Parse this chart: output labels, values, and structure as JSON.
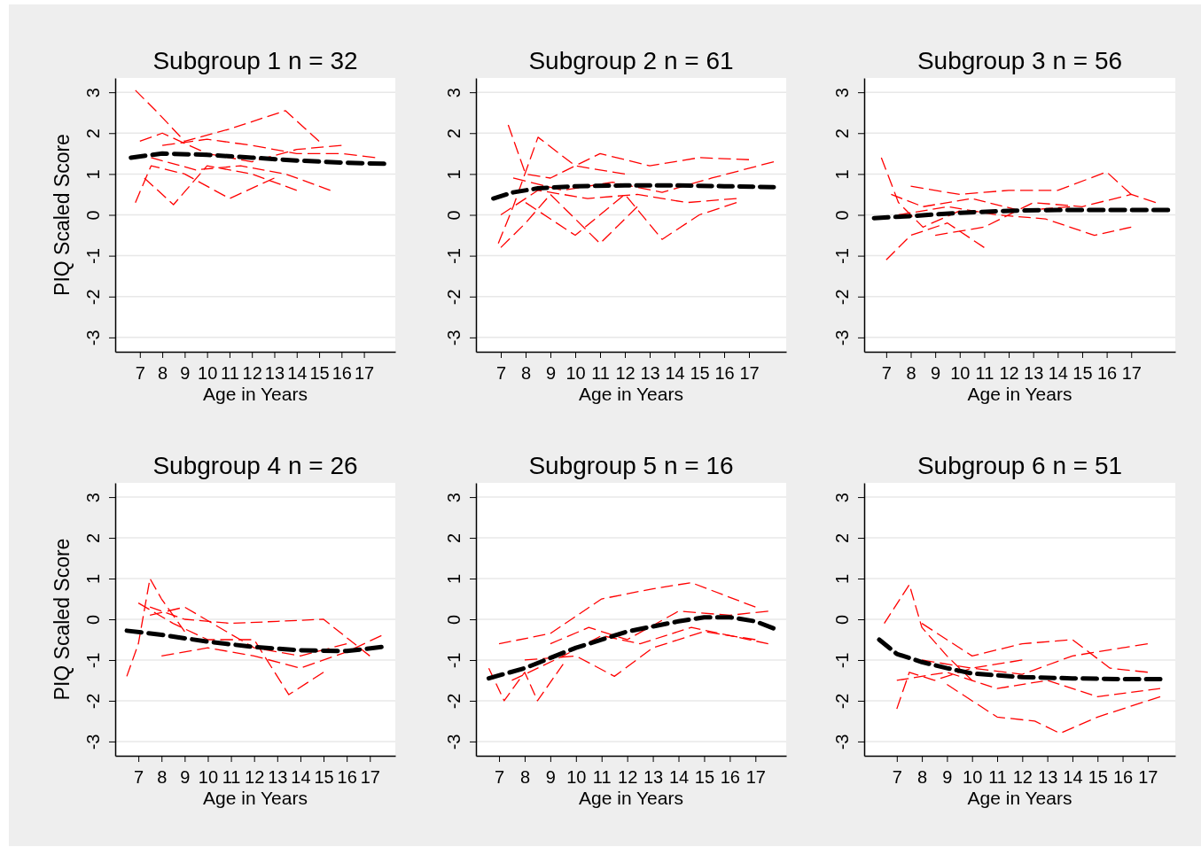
{
  "chart_data": [
    {
      "type": "line",
      "title": "Subgroup 1 n = 32",
      "xlabel": "Age in Years",
      "ylabel": "PIQ Scaled Score",
      "xlim": [
        5.9,
        18.4
      ],
      "ylim": [
        -3.35,
        3.35
      ],
      "xticks": [
        7,
        8,
        9,
        10,
        11,
        12,
        13,
        14,
        15,
        16,
        17
      ],
      "yticks": [
        -3,
        -2,
        -1,
        0,
        1,
        2,
        3
      ],
      "grid": "y",
      "line_style": "dashed",
      "series": [
        {
          "color": "#ff0000",
          "x": [
            6.8,
            7.8,
            9,
            11,
            13.5,
            15
          ],
          "values": [
            3.05,
            2.5,
            1.8,
            2.1,
            2.55,
            1.8
          ]
        },
        {
          "color": "#ff0000",
          "x": [
            6.8,
            7.5,
            9,
            11,
            13
          ],
          "values": [
            0.3,
            1.2,
            1.0,
            0.4,
            0.9
          ]
        },
        {
          "color": "#ff0000",
          "x": [
            7,
            8,
            10,
            12,
            14,
            16
          ],
          "values": [
            1.8,
            2.0,
            1.5,
            1.3,
            1.6,
            1.7
          ]
        },
        {
          "color": "#ff0000",
          "x": [
            7.2,
            8.5,
            10,
            12,
            14
          ],
          "values": [
            0.9,
            0.25,
            1.2,
            1.0,
            0.6
          ]
        },
        {
          "color": "#ff0000",
          "x": [
            8,
            10,
            12,
            14,
            16,
            17.5
          ],
          "values": [
            1.7,
            1.85,
            1.7,
            1.5,
            1.5,
            1.4
          ]
        },
        {
          "color": "#ff0000",
          "x": [
            7.5,
            9.5,
            11.5,
            13.5,
            15.5
          ],
          "values": [
            1.4,
            1.1,
            1.2,
            1.0,
            0.6
          ]
        },
        {
          "color": "#000000",
          "x": [
            6.6,
            8,
            10,
            12,
            14,
            16,
            17.9
          ],
          "values": [
            1.4,
            1.5,
            1.47,
            1.4,
            1.33,
            1.28,
            1.25
          ]
        }
      ]
    },
    {
      "type": "line",
      "title": "Subgroup 2 n = 61",
      "xlabel": "Age in Years",
      "xlim": [
        6.0,
        18.5
      ],
      "ylim": [
        -3.35,
        3.35
      ],
      "xticks": [
        7,
        8,
        9,
        10,
        11,
        12,
        13,
        14,
        15,
        16,
        17
      ],
      "yticks": [
        -3,
        -2,
        -1,
        0,
        1,
        2,
        3
      ],
      "grid": "y",
      "line_style": "dashed",
      "series": [
        {
          "color": "#ff0000",
          "x": [
            6.9,
            7.5,
            8.5,
            10,
            12
          ],
          "values": [
            -0.7,
            0.2,
            1.9,
            1.2,
            1.0
          ]
        },
        {
          "color": "#ff0000",
          "x": [
            7.3,
            8,
            9,
            11,
            13,
            15,
            17
          ],
          "values": [
            2.2,
            1.0,
            0.9,
            1.5,
            1.2,
            1.4,
            1.35
          ]
        },
        {
          "color": "#ff0000",
          "x": [
            7,
            8,
            9,
            11,
            12.5
          ],
          "values": [
            -0.8,
            -0.2,
            0.5,
            -0.7,
            0.2
          ]
        },
        {
          "color": "#ff0000",
          "x": [
            8,
            10,
            12,
            13.5,
            15,
            16.5
          ],
          "values": [
            0.3,
            -0.5,
            0.5,
            -0.6,
            0.0,
            0.3
          ]
        },
        {
          "color": "#ff0000",
          "x": [
            7.5,
            9.5,
            11.5,
            13.5,
            15.5,
            18
          ],
          "values": [
            0.9,
            0.6,
            0.8,
            0.55,
            0.9,
            1.3
          ]
        },
        {
          "color": "#ff0000",
          "x": [
            7,
            8.5,
            10.5,
            12.5,
            14.5,
            16.5
          ],
          "values": [
            0.0,
            0.6,
            0.4,
            0.5,
            0.3,
            0.4
          ]
        },
        {
          "color": "#000000",
          "x": [
            6.7,
            7.5,
            8.5,
            10,
            12,
            14,
            16,
            18
          ],
          "values": [
            0.4,
            0.55,
            0.65,
            0.7,
            0.72,
            0.72,
            0.7,
            0.68
          ]
        }
      ]
    },
    {
      "type": "line",
      "title": "Subgroup 3 n = 56",
      "xlabel": "Age in Years",
      "xlim": [
        6.1,
        18.8
      ],
      "ylim": [
        -3.35,
        3.35
      ],
      "xticks": [
        7,
        8,
        9,
        10,
        11,
        12,
        13,
        14,
        15,
        16,
        17
      ],
      "yticks": [
        -3,
        -2,
        -1,
        0,
        1,
        2,
        3
      ],
      "grid": "y",
      "line_style": "dashed",
      "series": [
        {
          "color": "#ff0000",
          "x": [
            6.8,
            7.5,
            8.5,
            10
          ],
          "values": [
            1.4,
            0.3,
            -0.3,
            0.1
          ]
        },
        {
          "color": "#ff0000",
          "x": [
            7,
            8,
            9.5,
            11
          ],
          "values": [
            -1.1,
            -0.5,
            -0.2,
            -0.8
          ]
        },
        {
          "color": "#ff0000",
          "x": [
            8,
            10,
            12,
            14,
            16,
            17
          ],
          "values": [
            0.7,
            0.5,
            0.6,
            0.6,
            1.05,
            0.5
          ]
        },
        {
          "color": "#ff0000",
          "x": [
            7.5,
            9.5,
            11.5,
            13.5,
            15.5,
            17
          ],
          "values": [
            0.0,
            0.2,
            0.0,
            -0.1,
            -0.5,
            -0.3
          ]
        },
        {
          "color": "#ff0000",
          "x": [
            9,
            11,
            13,
            15,
            17,
            18
          ],
          "values": [
            -0.5,
            -0.3,
            0.3,
            0.2,
            0.5,
            0.3
          ]
        },
        {
          "color": "#ff0000",
          "x": [
            7.2,
            8.5,
            10.5,
            12.5,
            14.5
          ],
          "values": [
            0.5,
            0.2,
            0.4,
            0.1,
            0.2
          ]
        },
        {
          "color": "#000000",
          "x": [
            6.5,
            8,
            10,
            12,
            14,
            16,
            18.5
          ],
          "values": [
            -0.08,
            -0.03,
            0.05,
            0.1,
            0.12,
            0.12,
            0.12
          ]
        }
      ]
    },
    {
      "type": "line",
      "title": "Subgroup 4 n = 26",
      "xlabel": "Age in Years",
      "ylabel": "PIQ Scaled Score",
      "xlim": [
        6.0,
        18.1
      ],
      "ylim": [
        -3.35,
        3.35
      ],
      "xticks": [
        7,
        8,
        9,
        10,
        11,
        12,
        13,
        14,
        15,
        16,
        17
      ],
      "yticks": [
        -3,
        -2,
        -1,
        0,
        1,
        2,
        3
      ],
      "grid": "y",
      "line_style": "dashed",
      "series": [
        {
          "color": "#ff0000",
          "x": [
            6.5,
            7,
            7.5,
            8,
            9
          ],
          "values": [
            -1.4,
            -0.6,
            1.0,
            0.5,
            -0.3
          ]
        },
        {
          "color": "#ff0000",
          "x": [
            7,
            8.5,
            10,
            12,
            13.5,
            15
          ],
          "values": [
            0.4,
            -0.1,
            -0.5,
            -0.5,
            -1.85,
            -1.3
          ]
        },
        {
          "color": "#ff0000",
          "x": [
            7.5,
            9,
            11,
            13,
            15,
            17
          ],
          "values": [
            0.3,
            0.0,
            -0.1,
            -0.05,
            0.0,
            -0.9
          ]
        },
        {
          "color": "#ff0000",
          "x": [
            7.5,
            9,
            10.5,
            12,
            14,
            16
          ],
          "values": [
            0.1,
            0.3,
            -0.2,
            -0.7,
            -0.9,
            -0.6
          ]
        },
        {
          "color": "#ff0000",
          "x": [
            8,
            10,
            12,
            14,
            16,
            17.5
          ],
          "values": [
            -0.9,
            -0.7,
            -0.9,
            -1.2,
            -0.8,
            -0.4
          ]
        },
        {
          "color": "#000000",
          "x": [
            6.5,
            8,
            10,
            12,
            14,
            16,
            17.5
          ],
          "values": [
            -0.28,
            -0.38,
            -0.55,
            -0.68,
            -0.76,
            -0.78,
            -0.68
          ]
        }
      ]
    },
    {
      "type": "line",
      "title": "Subgroup 5 n = 16",
      "xlabel": "Age in Years",
      "xlim": [
        6.1,
        18.2
      ],
      "ylim": [
        -3.35,
        3.35
      ],
      "xticks": [
        7,
        8,
        9,
        10,
        11,
        12,
        13,
        14,
        15,
        16,
        17
      ],
      "yticks": [
        -3,
        -2,
        -1,
        0,
        1,
        2,
        3
      ],
      "grid": "y",
      "line_style": "dashed",
      "series": [
        {
          "color": "#ff0000",
          "x": [
            6.6,
            7.2,
            8,
            8.5,
            9.5
          ],
          "values": [
            -1.2,
            -2.0,
            -1.3,
            -2.0,
            -1.1
          ]
        },
        {
          "color": "#ff0000",
          "x": [
            7,
            9,
            11,
            13,
            14.5,
            17
          ],
          "values": [
            -0.6,
            -0.35,
            0.5,
            0.75,
            0.9,
            0.3
          ]
        },
        {
          "color": "#ff0000",
          "x": [
            8,
            10,
            11.5,
            13,
            15,
            17
          ],
          "values": [
            -1.0,
            -0.9,
            -1.4,
            -0.7,
            -0.3,
            -0.5
          ]
        },
        {
          "color": "#ff0000",
          "x": [
            7.5,
            9.5,
            11,
            12.5,
            14.5,
            17.5
          ],
          "values": [
            -1.5,
            -0.9,
            -0.4,
            -0.6,
            -0.2,
            -0.6
          ]
        },
        {
          "color": "#ff0000",
          "x": [
            9,
            10.5,
            12,
            14,
            16,
            17.5
          ],
          "values": [
            -0.6,
            -0.2,
            -0.5,
            0.2,
            0.1,
            0.2
          ]
        },
        {
          "color": "#000000",
          "x": [
            6.6,
            8,
            10,
            12,
            14,
            15,
            16,
            17,
            17.7
          ],
          "values": [
            -1.45,
            -1.2,
            -0.7,
            -0.3,
            -0.05,
            0.05,
            0.05,
            -0.05,
            -0.22
          ]
        }
      ]
    },
    {
      "type": "line",
      "title": "Subgroup 6 n = 51",
      "xlabel": "Age in Years",
      "xlim": [
        5.7,
        18.1
      ],
      "ylim": [
        -3.35,
        3.35
      ],
      "xticks": [
        7,
        8,
        9,
        10,
        11,
        12,
        13,
        14,
        15,
        16,
        17
      ],
      "yticks": [
        -3,
        -2,
        -1,
        0,
        1,
        2,
        3
      ],
      "grid": "y",
      "line_style": "dashed",
      "series": [
        {
          "color": "#ff0000",
          "x": [
            6.5,
            7.5,
            8,
            9,
            10
          ],
          "values": [
            -0.1,
            0.85,
            -0.2,
            -0.9,
            -1.5
          ]
        },
        {
          "color": "#ff0000",
          "x": [
            7,
            7.5,
            8.5,
            10,
            12
          ],
          "values": [
            -2.2,
            -1.3,
            -1.5,
            -1.2,
            -1.0
          ]
        },
        {
          "color": "#ff0000",
          "x": [
            8,
            10,
            12,
            14,
            15.5,
            17
          ],
          "values": [
            -0.1,
            -0.9,
            -0.6,
            -0.5,
            -1.2,
            -1.3
          ]
        },
        {
          "color": "#ff0000",
          "x": [
            9,
            11,
            12.5,
            13.5,
            15,
            17.5
          ],
          "values": [
            -1.6,
            -2.4,
            -2.5,
            -2.8,
            -2.4,
            -1.9
          ]
        },
        {
          "color": "#ff0000",
          "x": [
            7,
            9,
            11,
            13,
            15,
            17.5
          ],
          "values": [
            -1.5,
            -1.3,
            -1.7,
            -1.5,
            -1.9,
            -1.7
          ]
        },
        {
          "color": "#ff0000",
          "x": [
            8,
            10,
            12,
            14,
            16,
            17
          ],
          "values": [
            -1.0,
            -1.2,
            -1.35,
            -0.9,
            -0.7,
            -0.6
          ]
        },
        {
          "color": "#000000",
          "x": [
            6.3,
            7,
            8,
            9,
            10,
            12,
            14,
            16,
            17.5
          ],
          "values": [
            -0.5,
            -0.85,
            -1.05,
            -1.2,
            -1.33,
            -1.42,
            -1.45,
            -1.47,
            -1.47
          ]
        }
      ]
    }
  ]
}
